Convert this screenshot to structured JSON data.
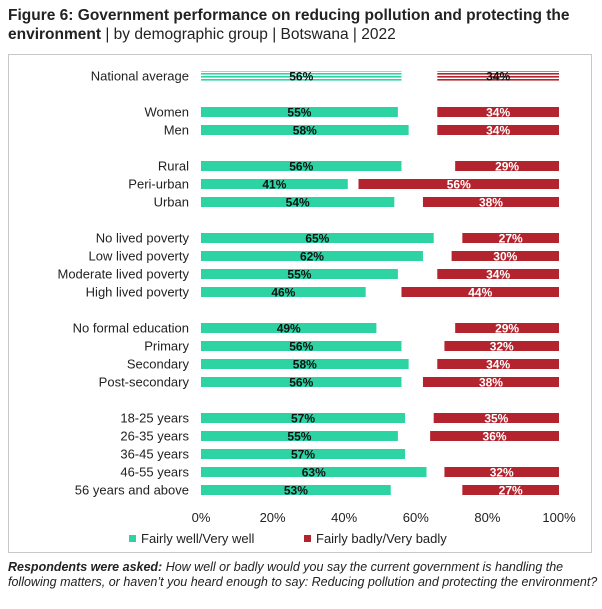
{
  "title_bold": "Figure 6: Government performance on reducing pollution and protecting the environment",
  "title_rest": " | by demographic group | Botswana | 2022",
  "footnote_bold": "Respondents were asked:",
  "footnote_text": " How well or badly would you say the current government is handling the following matters, or haven’t you heard enough to say: Reducing pollution and protecting the environment?",
  "colors": {
    "well": "#2ed3a3",
    "badly": "#b3242e"
  },
  "chart_data": {
    "type": "bar",
    "orientation": "horizontal",
    "xlim": [
      0,
      100
    ],
    "x_ticks": [
      "0%",
      "20%",
      "40%",
      "60%",
      "80%",
      "100%"
    ],
    "legend_position": "bottom",
    "series": [
      {
        "name": "Fairly well/Very well",
        "color": "#2ed3a3",
        "anchor": "left"
      },
      {
        "name": "Fairly badly/Very badly",
        "color": "#b3242e",
        "anchor": "right"
      }
    ],
    "categories": [
      {
        "label": "National average",
        "well": 56,
        "badly": 34,
        "well_label": "56%",
        "badly_label": "34%",
        "striped": true,
        "group_start": true
      },
      {
        "label": "Women",
        "well": 55,
        "badly": 34,
        "well_label": "55%",
        "badly_label": "34%",
        "group_start": true
      },
      {
        "label": "Men",
        "well": 58,
        "badly": 34,
        "well_label": "58%",
        "badly_label": "34%"
      },
      {
        "label": "Rural",
        "well": 56,
        "badly": 29,
        "well_label": "56%",
        "badly_label": "29%",
        "group_start": true
      },
      {
        "label": "Peri-urban",
        "well": 41,
        "badly": 56,
        "well_label": "41%",
        "badly_label": "56%"
      },
      {
        "label": "Urban",
        "well": 54,
        "badly": 38,
        "well_label": "54%",
        "badly_label": "38%"
      },
      {
        "label": "No lived poverty",
        "well": 65,
        "badly": 27,
        "well_label": "65%",
        "badly_label": "27%",
        "group_start": true
      },
      {
        "label": "Low lived poverty",
        "well": 62,
        "badly": 30,
        "well_label": "62%",
        "badly_label": "30%"
      },
      {
        "label": "Moderate lived poverty",
        "well": 55,
        "badly": 34,
        "well_label": "55%",
        "badly_label": "34%"
      },
      {
        "label": "High lived poverty",
        "well": 46,
        "badly": 44,
        "well_label": "46%",
        "badly_label": "44%"
      },
      {
        "label": "No formal education",
        "well": 49,
        "badly": 29,
        "well_label": "49%",
        "badly_label": "29%",
        "group_start": true
      },
      {
        "label": "Primary",
        "well": 56,
        "badly": 32,
        "well_label": "56%",
        "badly_label": "32%"
      },
      {
        "label": "Secondary",
        "well": 58,
        "badly": 34,
        "well_label": "58%",
        "badly_label": "34%"
      },
      {
        "label": "Post-secondary",
        "well": 56,
        "badly": 38,
        "well_label": "56%",
        "badly_label": "38%"
      },
      {
        "label": "18-25 years",
        "well": 57,
        "badly": 35,
        "well_label": "57%",
        "badly_label": "35%",
        "group_start": true
      },
      {
        "label": "26-35 years",
        "well": 55,
        "badly": 36,
        "well_label": "55%",
        "badly_label": "36%"
      },
      {
        "label": "36-45 years",
        "well": 57,
        "badly": 0,
        "well_label": "57%",
        "badly_label": ""
      },
      {
        "label": "46-55 years",
        "well": 63,
        "badly": 32,
        "well_label": "63%",
        "badly_label": "32%"
      },
      {
        "label": "56 years and above",
        "well": 53,
        "badly": 27,
        "well_label": "53%",
        "badly_label": "27%"
      }
    ]
  }
}
